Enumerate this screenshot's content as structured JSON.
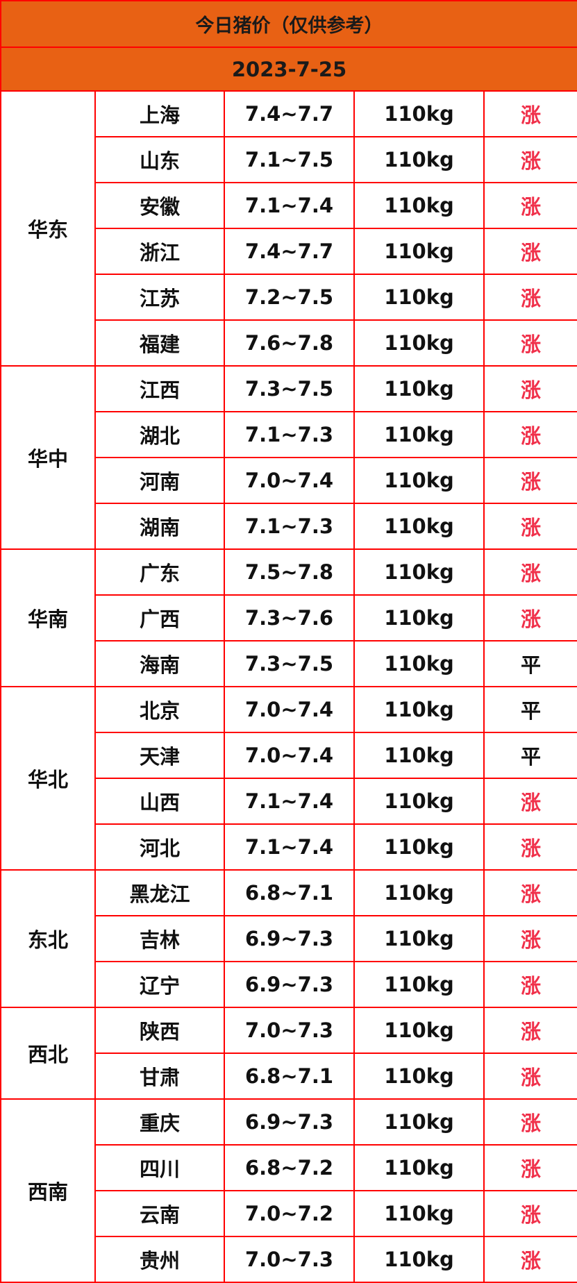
{
  "title": "今日猪价（仅供参考）",
  "date": "2023-7-25",
  "colors": {
    "header_bg": "#e86114",
    "border": "#ff0000",
    "rise": "#f0304a",
    "flat": "#111111"
  },
  "regions": [
    {
      "name": "华东",
      "rows": [
        {
          "province": "上海",
          "price": "7.4~7.7",
          "weight": "110kg",
          "trend": "涨"
        },
        {
          "province": "山东",
          "price": "7.1~7.5",
          "weight": "110kg",
          "trend": "涨"
        },
        {
          "province": "安徽",
          "price": "7.1~7.4",
          "weight": "110kg",
          "trend": "涨"
        },
        {
          "province": "浙江",
          "price": "7.4~7.7",
          "weight": "110kg",
          "trend": "涨"
        },
        {
          "province": "江苏",
          "price": "7.2~7.5",
          "weight": "110kg",
          "trend": "涨"
        },
        {
          "province": "福建",
          "price": "7.6~7.8",
          "weight": "110kg",
          "trend": "涨"
        }
      ]
    },
    {
      "name": "华中",
      "rows": [
        {
          "province": "江西",
          "price": "7.3~7.5",
          "weight": "110kg",
          "trend": "涨"
        },
        {
          "province": "湖北",
          "price": "7.1~7.3",
          "weight": "110kg",
          "trend": "涨"
        },
        {
          "province": "河南",
          "price": "7.0~7.4",
          "weight": "110kg",
          "trend": "涨"
        },
        {
          "province": "湖南",
          "price": "7.1~7.3",
          "weight": "110kg",
          "trend": "涨"
        }
      ]
    },
    {
      "name": "华南",
      "rows": [
        {
          "province": "广东",
          "price": "7.5~7.8",
          "weight": "110kg",
          "trend": "涨"
        },
        {
          "province": "广西",
          "price": "7.3~7.6",
          "weight": "110kg",
          "trend": "涨"
        },
        {
          "province": "海南",
          "price": "7.3~7.5",
          "weight": "110kg",
          "trend": "平"
        }
      ]
    },
    {
      "name": "华北",
      "rows": [
        {
          "province": "北京",
          "price": "7.0~7.4",
          "weight": "110kg",
          "trend": "平"
        },
        {
          "province": "天津",
          "price": "7.0~7.4",
          "weight": "110kg",
          "trend": "平"
        },
        {
          "province": "山西",
          "price": "7.1~7.4",
          "weight": "110kg",
          "trend": "涨"
        },
        {
          "province": "河北",
          "price": "7.1~7.4",
          "weight": "110kg",
          "trend": "涨"
        }
      ]
    },
    {
      "name": "东北",
      "rows": [
        {
          "province": "黑龙江",
          "price": "6.8~7.1",
          "weight": "110kg",
          "trend": "涨"
        },
        {
          "province": "吉林",
          "price": "6.9~7.3",
          "weight": "110kg",
          "trend": "涨"
        },
        {
          "province": "辽宁",
          "price": "6.9~7.3",
          "weight": "110kg",
          "trend": "涨"
        }
      ]
    },
    {
      "name": "西北",
      "rows": [
        {
          "province": "陕西",
          "price": "7.0~7.3",
          "weight": "110kg",
          "trend": "涨"
        },
        {
          "province": "甘肃",
          "price": "6.8~7.1",
          "weight": "110kg",
          "trend": "涨"
        }
      ]
    },
    {
      "name": "西南",
      "rows": [
        {
          "province": "重庆",
          "price": "6.9~7.3",
          "weight": "110kg",
          "trend": "涨"
        },
        {
          "province": "四川",
          "price": "6.8~7.2",
          "weight": "110kg",
          "trend": "涨"
        },
        {
          "province": "云南",
          "price": "7.0~7.2",
          "weight": "110kg",
          "trend": "涨"
        },
        {
          "province": "贵州",
          "price": "7.0~7.3",
          "weight": "110kg",
          "trend": "涨"
        }
      ]
    }
  ]
}
